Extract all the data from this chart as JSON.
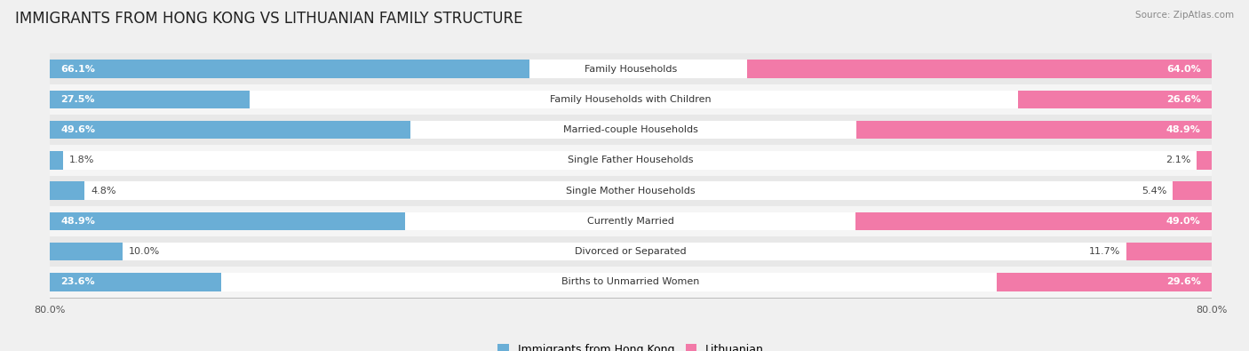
{
  "title": "IMMIGRANTS FROM HONG KONG VS LITHUANIAN FAMILY STRUCTURE",
  "source": "Source: ZipAtlas.com",
  "categories": [
    "Family Households",
    "Family Households with Children",
    "Married-couple Households",
    "Single Father Households",
    "Single Mother Households",
    "Currently Married",
    "Divorced or Separated",
    "Births to Unmarried Women"
  ],
  "hk_values": [
    66.1,
    27.5,
    49.6,
    1.8,
    4.8,
    48.9,
    10.0,
    23.6
  ],
  "lt_values": [
    64.0,
    26.6,
    48.9,
    2.1,
    5.4,
    49.0,
    11.7,
    29.6
  ],
  "hk_color": "#6aaed6",
  "lt_color": "#f27aa8",
  "hk_label": "Immigrants from Hong Kong",
  "lt_label": "Lithuanian",
  "axis_max": 80.0,
  "axis_label": "80.0%",
  "bg_color": "#f0f0f0",
  "row_bg_odd": "#e8e8e8",
  "row_bg_even": "#f5f5f5",
  "bar_height": 0.6,
  "title_fontsize": 12,
  "label_fontsize": 8,
  "value_fontsize": 8,
  "legend_fontsize": 9,
  "inside_threshold": 15
}
